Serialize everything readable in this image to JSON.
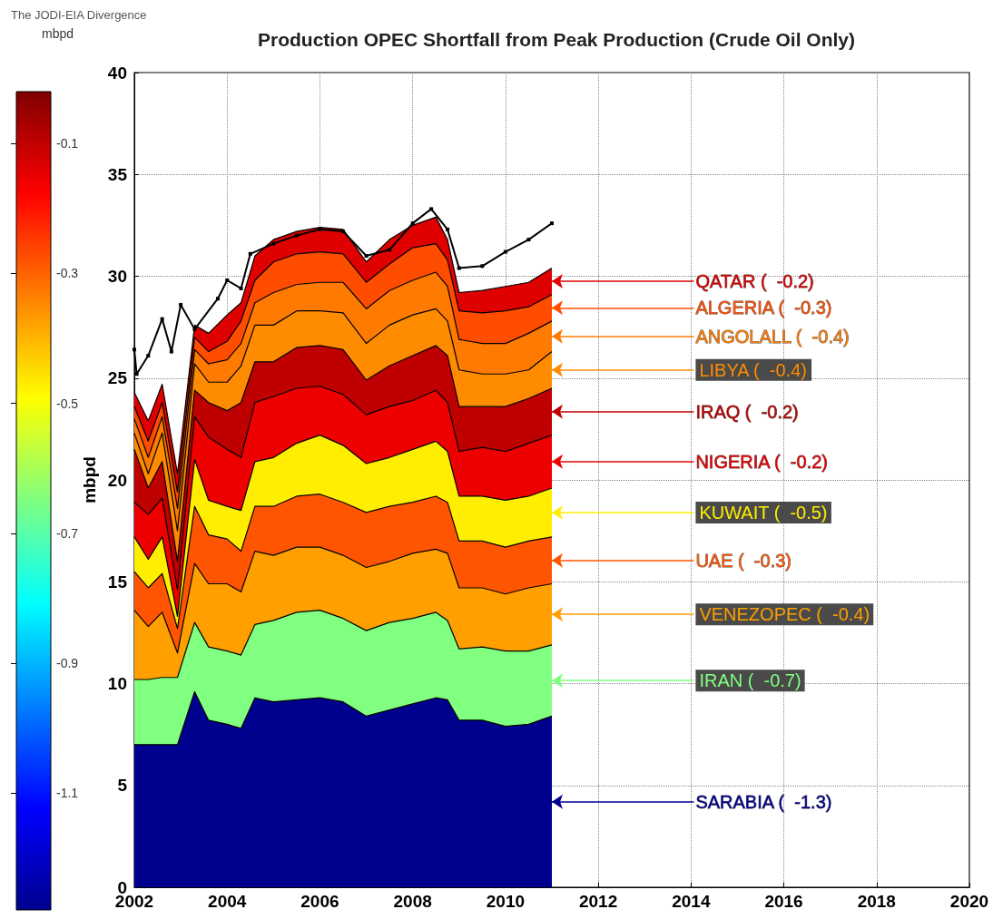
{
  "chart_data": {
    "type": "area",
    "title": "Production OPEC Shortfall from Peak Production (Crude Oil Only)",
    "ylabel": "mbpd",
    "clabel": "mbpd",
    "annotations": [
      "The JODI-EIA Divergence"
    ],
    "stacked": true,
    "grid": true,
    "x": [
      2002.0,
      2002.3,
      2002.6,
      2002.93,
      2003.3,
      2003.6,
      2004.0,
      2004.3,
      2004.6,
      2005.0,
      2005.5,
      2006.0,
      2006.5,
      2007.0,
      2007.5,
      2008.0,
      2008.5,
      2008.75,
      2009.0,
      2009.5,
      2010.0,
      2010.5,
      2011.0
    ],
    "xlim": [
      2002,
      2020
    ],
    "xticks": [
      2002,
      2004,
      2006,
      2008,
      2010,
      2012,
      2014,
      2016,
      2018,
      2020
    ],
    "ylim": [
      0,
      40
    ],
    "yticks": [
      0,
      5,
      10,
      15,
      20,
      25,
      30,
      35,
      40
    ],
    "clim": [
      -1.28,
      -0.02
    ],
    "cticks": [
      -1.1,
      -0.9,
      -0.7,
      -0.5,
      -0.3,
      -0.1
    ],
    "series": [
      {
        "name": "SARABIA (  -1.3)",
        "color": "#00008f",
        "values": [
          7.0,
          7.0,
          7.0,
          7.0,
          9.6,
          8.2,
          8.0,
          7.8,
          9.3,
          9.1,
          9.2,
          9.3,
          9.1,
          8.4,
          8.7,
          9.0,
          9.3,
          9.2,
          8.2,
          8.2,
          7.9,
          8.0,
          8.4
        ]
      },
      {
        "name": "IRAN (  -0.7)",
        "color": "#80ff80",
        "values": [
          3.2,
          3.2,
          3.3,
          3.3,
          3.4,
          3.6,
          3.6,
          3.6,
          3.6,
          4.0,
          4.3,
          4.3,
          4.1,
          4.2,
          4.3,
          4.2,
          4.2,
          3.9,
          3.5,
          3.6,
          3.7,
          3.6,
          3.5
        ]
      },
      {
        "name": "VENEZOPEC (  -0.4)",
        "color": "#ff9f00",
        "values": [
          3.4,
          2.6,
          3.2,
          1.2,
          2.9,
          3.1,
          3.3,
          3.1,
          3.6,
          3.2,
          3.2,
          3.1,
          3.1,
          3.1,
          3.0,
          3.2,
          3.1,
          3.3,
          3.0,
          2.9,
          2.8,
          3.1,
          3.0
        ]
      },
      {
        "name": "UAE (  -0.3)",
        "color": "#ff5500",
        "values": [
          1.9,
          1.9,
          1.9,
          1.2,
          2.8,
          2.4,
          2.2,
          2.0,
          2.2,
          2.4,
          2.5,
          2.6,
          2.6,
          2.7,
          2.7,
          2.5,
          2.6,
          2.5,
          2.3,
          2.3,
          2.3,
          2.3,
          2.3
        ]
      },
      {
        "name": "KUWAIT (  -0.5)",
        "color": "#ffee00",
        "values": [
          1.7,
          1.4,
          1.8,
          0.6,
          2.3,
          1.7,
          1.6,
          2.0,
          2.2,
          2.4,
          2.6,
          2.9,
          2.8,
          2.4,
          2.4,
          2.6,
          2.7,
          2.5,
          2.2,
          2.2,
          2.3,
          2.2,
          2.4
        ]
      },
      {
        "name": "NIGERIA (  -0.2)",
        "color": "#ee0000",
        "values": [
          1.7,
          2.2,
          1.9,
          1.3,
          2.1,
          3.1,
          2.8,
          2.6,
          2.9,
          3.0,
          2.7,
          2.4,
          2.5,
          2.4,
          2.5,
          2.4,
          2.5,
          2.4,
          2.2,
          2.4,
          2.4,
          2.6,
          2.6
        ]
      },
      {
        "name": "IRAQ (  -0.2)",
        "color": "#bf0000",
        "values": [
          2.6,
          1.3,
          1.8,
          1.4,
          1.3,
          1.7,
          1.9,
          2.7,
          2.0,
          1.7,
          2.0,
          2.0,
          2.2,
          1.7,
          2.0,
          2.2,
          2.2,
          2.3,
          2.2,
          2.0,
          2.2,
          2.2,
          2.3
        ]
      },
      {
        "name": "LIBYA (  -0.4)",
        "color": "#ff8c00",
        "values": [
          0.8,
          0.7,
          1.4,
          1.5,
          1.3,
          1.0,
          1.4,
          1.8,
          1.8,
          1.8,
          1.8,
          1.7,
          1.8,
          1.8,
          2.0,
          2.0,
          1.8,
          1.7,
          1.8,
          1.6,
          1.6,
          1.4,
          1.8
        ]
      },
      {
        "name": "ANGOLALL (  -0.4)",
        "color": "#ff7a00",
        "values": [
          0.7,
          0.8,
          0.8,
          1.1,
          0.7,
          0.9,
          1.1,
          1.1,
          1.1,
          1.6,
          1.3,
          1.4,
          1.5,
          1.7,
          1.7,
          1.7,
          1.8,
          1.7,
          1.5,
          1.5,
          1.5,
          1.8,
          1.5
        ]
      },
      {
        "name": "ALGERIA (  -0.3)",
        "color": "#ff4d00",
        "values": [
          0.6,
          0.8,
          0.7,
          0.8,
          0.6,
          0.6,
          0.9,
          1.1,
          1.1,
          1.5,
          1.5,
          1.5,
          1.4,
          1.3,
          1.3,
          1.6,
          1.4,
          1.3,
          1.4,
          1.5,
          1.6,
          1.3,
          1.3
        ]
      },
      {
        "name": "QATAR (  -0.2)",
        "color": "#df0000",
        "values": [
          0.7,
          1.0,
          0.9,
          0.9,
          0.6,
          0.9,
          1.3,
          0.9,
          1.2,
          1.1,
          1.1,
          1.2,
          1.2,
          1.0,
          1.2,
          1.1,
          1.3,
          1.0,
          0.9,
          1.1,
          1.2,
          1.2,
          1.3
        ]
      },
      {
        "type": "line",
        "color": "#000000",
        "marker": "square",
        "x": [
          2002.0,
          2002.05,
          2002.3,
          2002.6,
          2002.8,
          2003.0,
          2003.3,
          2003.8,
          2004.0,
          2004.3,
          2004.5,
          2005.0,
          2005.5,
          2006.0,
          2006.5,
          2007.0,
          2007.5,
          2008.0,
          2008.4,
          2008.75,
          2009.0,
          2009.5,
          2010.0,
          2010.5,
          2011.0
        ],
        "values": [
          26.4,
          25.2,
          26.1,
          27.9,
          26.3,
          28.6,
          27.4,
          28.9,
          29.8,
          29.4,
          31.1,
          31.6,
          32.0,
          32.3,
          32.2,
          31.0,
          31.3,
          32.6,
          33.3,
          32.3,
          30.4,
          30.5,
          31.2,
          31.8,
          32.6
        ]
      }
    ]
  }
}
